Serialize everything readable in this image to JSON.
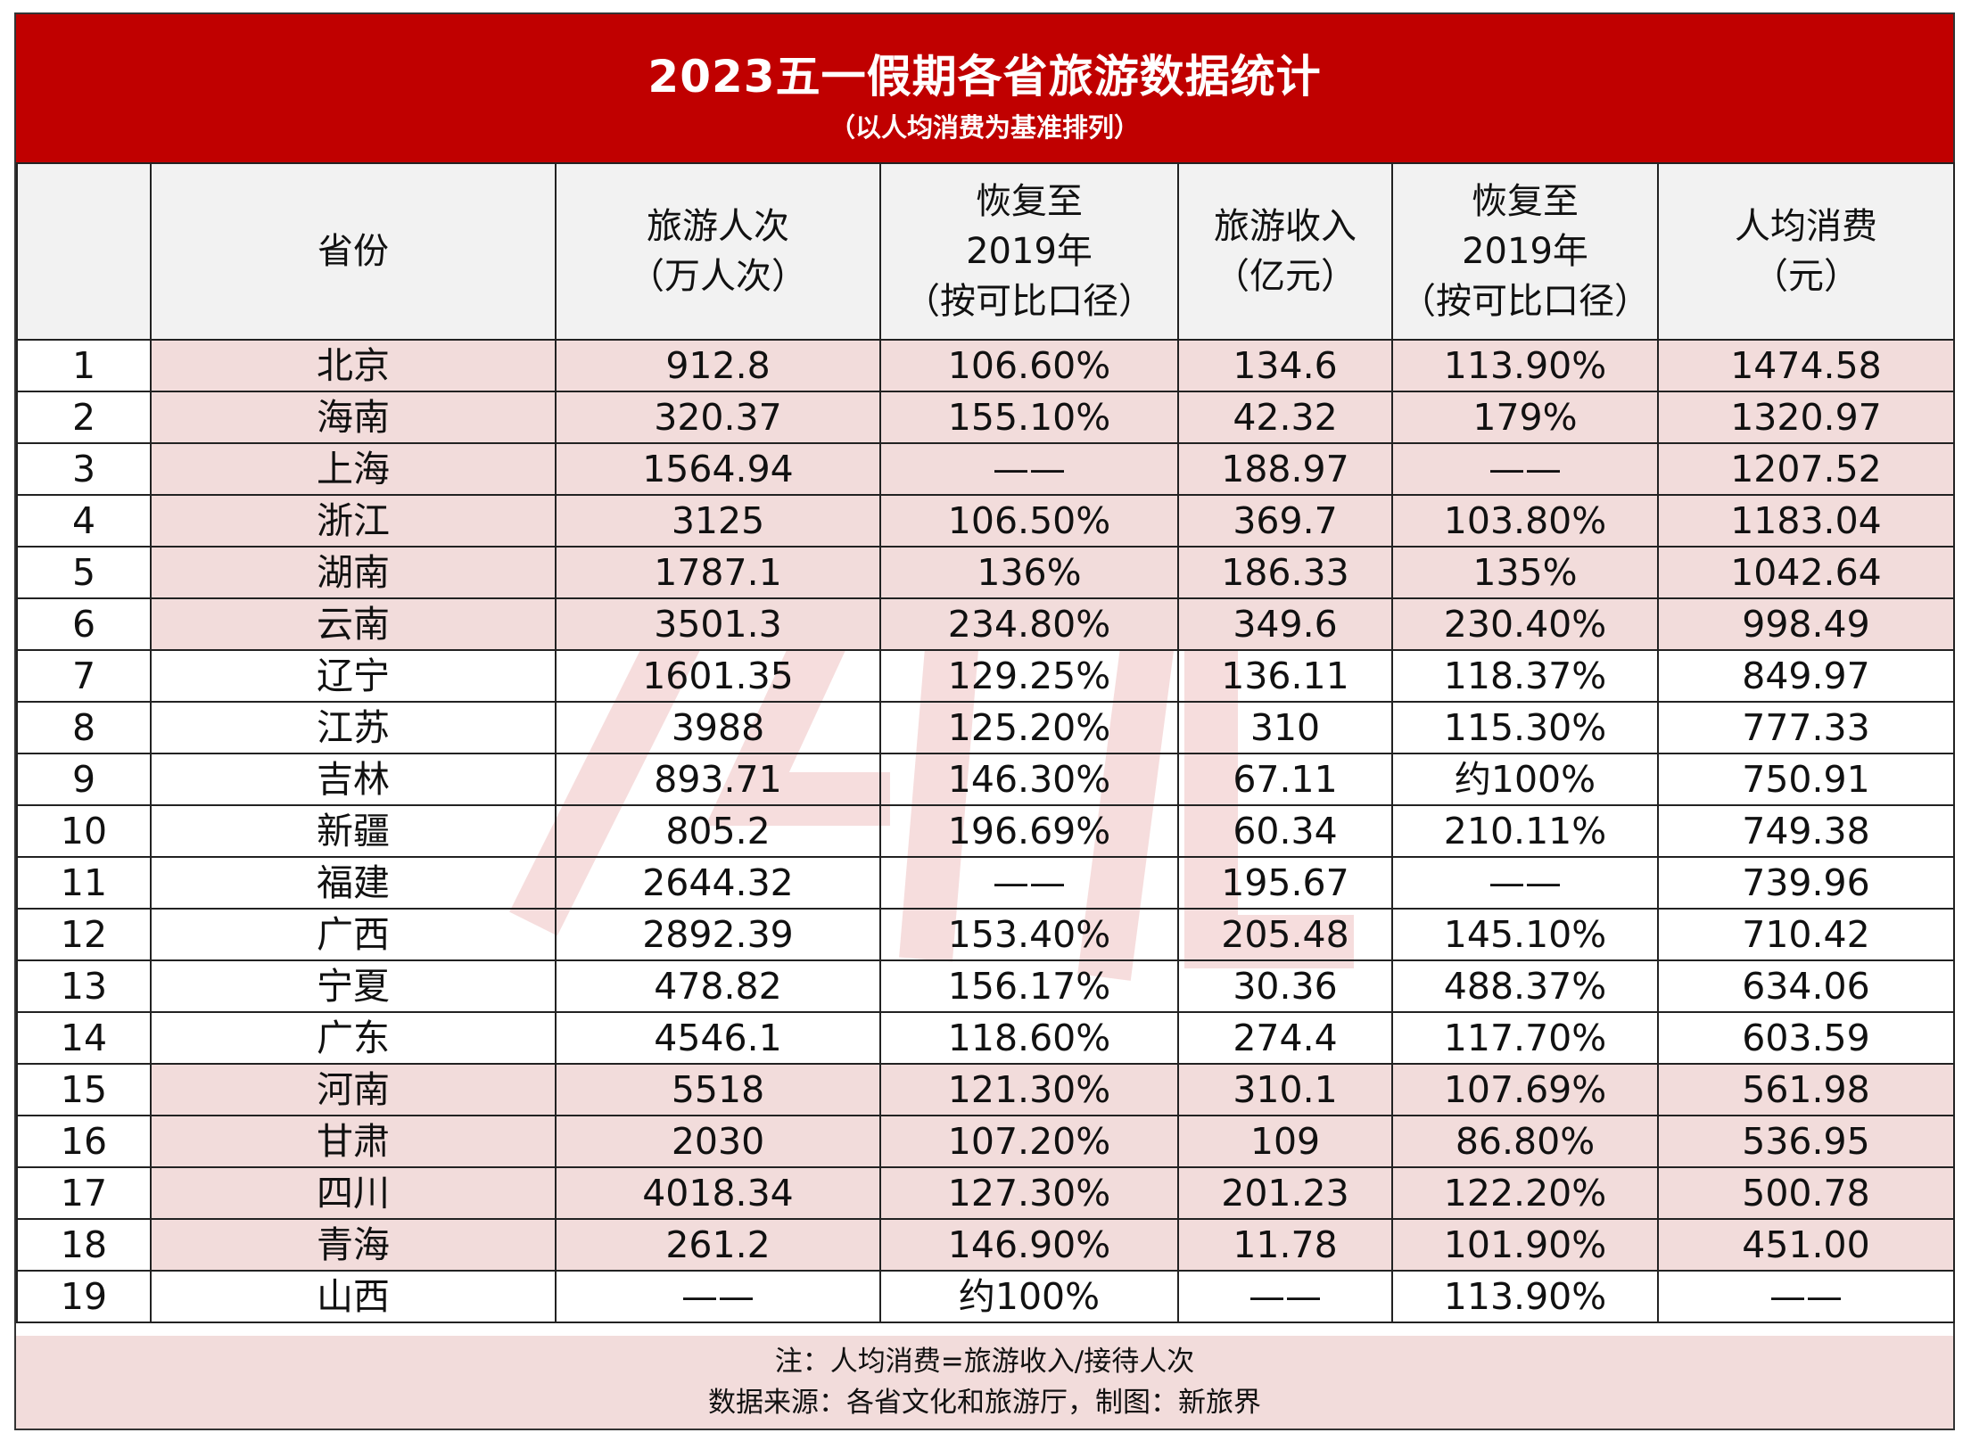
{
  "title": "2023五一假期各省旅游数据统计",
  "subtitle": "（以人均消费为基准排列）",
  "columns": [
    {
      "label": ""
    },
    {
      "label": "省份"
    },
    {
      "label": "旅游人次\n（万人次）"
    },
    {
      "label": "恢复至\n2019年\n（按可比口径）"
    },
    {
      "label": "旅游收入\n（亿元）"
    },
    {
      "label": "恢复至\n2019年\n（按可比口径）"
    },
    {
      "label": "人均消费\n（元）"
    }
  ],
  "rows": [
    {
      "rank": "1",
      "province": "北京",
      "visits": "912.8",
      "visits_recovery": "106.60%",
      "revenue": "134.6",
      "revenue_recovery": "113.90%",
      "per_capita": "1474.58",
      "highlight": true
    },
    {
      "rank": "2",
      "province": "海南",
      "visits": "320.37",
      "visits_recovery": "155.10%",
      "revenue": "42.32",
      "revenue_recovery": "179%",
      "per_capita": "1320.97",
      "highlight": true
    },
    {
      "rank": "3",
      "province": "上海",
      "visits": "1564.94",
      "visits_recovery": "——",
      "revenue": "188.97",
      "revenue_recovery": "——",
      "per_capita": "1207.52",
      "highlight": true
    },
    {
      "rank": "4",
      "province": "浙江",
      "visits": "3125",
      "visits_recovery": "106.50%",
      "revenue": "369.7",
      "revenue_recovery": "103.80%",
      "per_capita": "1183.04",
      "highlight": true
    },
    {
      "rank": "5",
      "province": "湖南",
      "visits": "1787.1",
      "visits_recovery": "136%",
      "revenue": "186.33",
      "revenue_recovery": "135%",
      "per_capita": "1042.64",
      "highlight": true
    },
    {
      "rank": "6",
      "province": "云南",
      "visits": "3501.3",
      "visits_recovery": "234.80%",
      "revenue": "349.6",
      "revenue_recovery": "230.40%",
      "per_capita": "998.49",
      "highlight": true
    },
    {
      "rank": "7",
      "province": "辽宁",
      "visits": "1601.35",
      "visits_recovery": "129.25%",
      "revenue": "136.11",
      "revenue_recovery": "118.37%",
      "per_capita": "849.97",
      "highlight": false
    },
    {
      "rank": "8",
      "province": "江苏",
      "visits": "3988",
      "visits_recovery": "125.20%",
      "revenue": "310",
      "revenue_recovery": "115.30%",
      "per_capita": "777.33",
      "highlight": false
    },
    {
      "rank": "9",
      "province": "吉林",
      "visits": "893.71",
      "visits_recovery": "146.30%",
      "revenue": "67.11",
      "revenue_recovery": "约100%",
      "per_capita": "750.91",
      "highlight": false
    },
    {
      "rank": "10",
      "province": "新疆",
      "visits": "805.2",
      "visits_recovery": "196.69%",
      "revenue": "60.34",
      "revenue_recovery": "210.11%",
      "per_capita": "749.38",
      "highlight": false
    },
    {
      "rank": "11",
      "province": "福建",
      "visits": "2644.32",
      "visits_recovery": "——",
      "revenue": "195.67",
      "revenue_recovery": "——",
      "per_capita": "739.96",
      "highlight": false
    },
    {
      "rank": "12",
      "province": "广西",
      "visits": "2892.39",
      "visits_recovery": "153.40%",
      "revenue": "205.48",
      "revenue_recovery": "145.10%",
      "per_capita": "710.42",
      "highlight": false
    },
    {
      "rank": "13",
      "province": "宁夏",
      "visits": "478.82",
      "visits_recovery": "156.17%",
      "revenue": "30.36",
      "revenue_recovery": "488.37%",
      "per_capita": "634.06",
      "highlight": false
    },
    {
      "rank": "14",
      "province": "广东",
      "visits": "4546.1",
      "visits_recovery": "118.60%",
      "revenue": "274.4",
      "revenue_recovery": "117.70%",
      "per_capita": "603.59",
      "highlight": false
    },
    {
      "rank": "15",
      "province": "河南",
      "visits": "5518",
      "visits_recovery": "121.30%",
      "revenue": "310.1",
      "revenue_recovery": "107.69%",
      "per_capita": "561.98",
      "highlight": true
    },
    {
      "rank": "16",
      "province": "甘肃",
      "visits": "2030",
      "visits_recovery": "107.20%",
      "revenue": "109",
      "revenue_recovery": "86.80%",
      "per_capita": "536.95",
      "highlight": true
    },
    {
      "rank": "17",
      "province": "四川",
      "visits": "4018.34",
      "visits_recovery": "127.30%",
      "revenue": "201.23",
      "revenue_recovery": "122.20%",
      "per_capita": "500.78",
      "highlight": true
    },
    {
      "rank": "18",
      "province": "青海",
      "visits": "261.2",
      "visits_recovery": "146.90%",
      "revenue": "11.78",
      "revenue_recovery": "101.90%",
      "per_capita": "451.00",
      "highlight": true
    },
    {
      "rank": "19",
      "province": "山西",
      "visits": "——",
      "visits_recovery": "约100%",
      "revenue": "——",
      "revenue_recovery": "113.90%",
      "per_capita": "——",
      "highlight": false
    }
  ],
  "footer": {
    "note": "注：人均消费=旅游收入/接待人次",
    "source": "数据来源：各省文化和旅游厅，制图：新旅界"
  },
  "colors": {
    "header_red": "#c00000",
    "highlight_pink": "#f2dcdb",
    "header_gray": "#f2f2f2"
  }
}
